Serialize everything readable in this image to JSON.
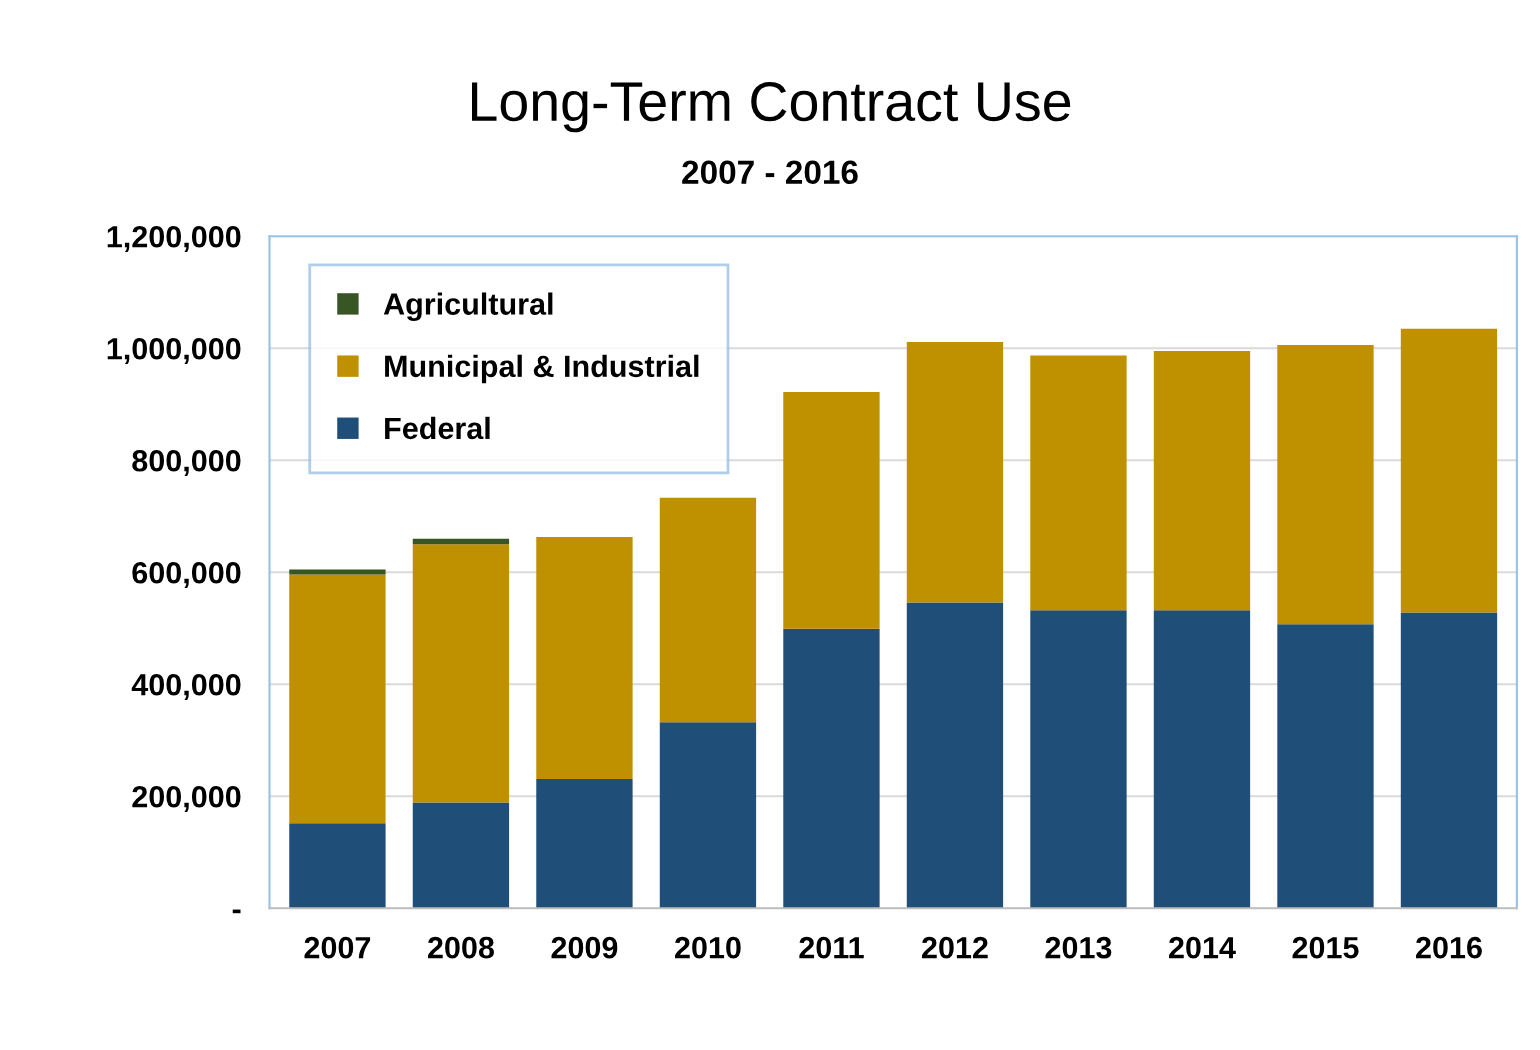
{
  "chart_data": {
    "type": "bar",
    "title": "Long-Term Contract Use",
    "subtitle": "2007 - 2016",
    "categories": [
      "2007",
      "2008",
      "2009",
      "2010",
      "2011",
      "2012",
      "2013",
      "2014",
      "2015",
      "2016"
    ],
    "stacked": true,
    "series": [
      {
        "name": "Federal",
        "color": "#1f4e79",
        "values": [
          152000,
          189000,
          231000,
          332000,
          499000,
          546000,
          532000,
          532000,
          507000,
          528000
        ]
      },
      {
        "name": "Municipal & Industrial",
        "color": "#bf9000",
        "values": [
          444000,
          461000,
          432000,
          401000,
          423000,
          465000,
          455000,
          463000,
          499000,
          507000
        ]
      },
      {
        "name": "Agricultural",
        "color": "#375623",
        "values": [
          9000,
          10000,
          0,
          0,
          0,
          0,
          0,
          0,
          0,
          0
        ]
      }
    ],
    "ylim": [
      0,
      1200000
    ],
    "yticks": [
      {
        "value": 0,
        "label": "-"
      },
      {
        "value": 200000,
        "label": "200,000"
      },
      {
        "value": 400000,
        "label": "400,000"
      },
      {
        "value": 600000,
        "label": "600,000"
      },
      {
        "value": 800000,
        "label": "800,000"
      },
      {
        "value": 1000000,
        "label": "1,000,000"
      },
      {
        "value": 1200000,
        "label": "1,200,000"
      }
    ],
    "grid": "y",
    "legend": "top left"
  }
}
